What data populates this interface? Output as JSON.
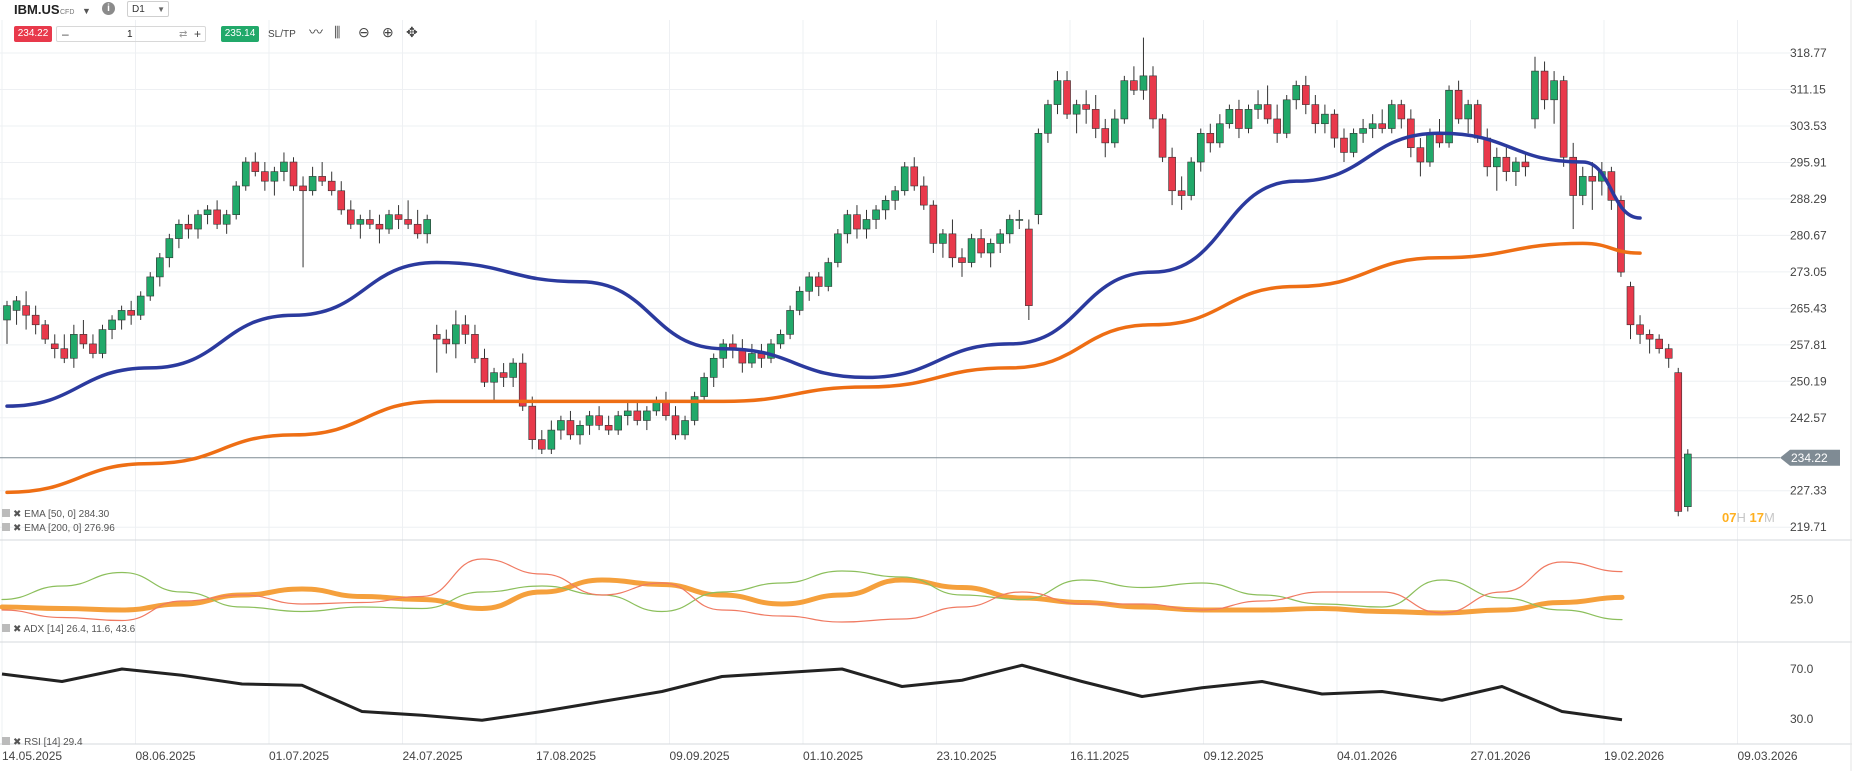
{
  "header": {
    "symbol": "IBM.US",
    "instrument_type": "CFD",
    "timeframe": "D1",
    "sell_price": "234.22",
    "buy_price": "235.14",
    "quantity": "1",
    "sltp_label": "SL/TP",
    "minus_label": "–",
    "plus_label": "+",
    "info_label": "i"
  },
  "countdown": {
    "hours": "07",
    "hours_unit": "H",
    "minutes": "17",
    "minutes_unit": "M"
  },
  "colors": {
    "up": "#21a96a",
    "down": "#e8394b",
    "ema50": "#2b3a9e",
    "ema200": "#ee6e14",
    "adx": "#f5a03c",
    "plus_di": "#8cbf5c",
    "minus_di": "#f07a62",
    "rsi": "#222222",
    "price_badge": "#7f8b94"
  },
  "chart_data": [
    {
      "type": "candlestick",
      "title": "IBM.US",
      "y_ticks": [
        "318.77",
        "311.15",
        "303.53",
        "295.91",
        "288.29",
        "280.67",
        "273.05",
        "265.43",
        "257.81",
        "250.19",
        "242.57",
        "234.22",
        "227.33",
        "219.71"
      ],
      "current_price": "234.22",
      "x_ticks": [
        "14.05.2025",
        "08.06.2025",
        "01.07.2025",
        "24.07.2025",
        "17.08.2025",
        "09.09.2025",
        "01.10.2025",
        "23.10.2025",
        "16.11.2025",
        "09.12.2025",
        "04.01.2026",
        "27.01.2026",
        "19.02.2026",
        "09.03.2026"
      ],
      "ylim": [
        218.5,
        324
      ],
      "candles_ohlc": [
        [
          263,
          267,
          258,
          266
        ],
        [
          265,
          268,
          262,
          267
        ],
        [
          266,
          269,
          261,
          264
        ],
        [
          264,
          266,
          260,
          262
        ],
        [
          262,
          263,
          258,
          259
        ],
        [
          258,
          260,
          255,
          257
        ],
        [
          257,
          260,
          254,
          255
        ],
        [
          255,
          262,
          253,
          260
        ],
        [
          260,
          263,
          257,
          258
        ],
        [
          258,
          260,
          255,
          256
        ],
        [
          256,
          262,
          255,
          261
        ],
        [
          261,
          264,
          259,
          263
        ],
        [
          263,
          266,
          261,
          265
        ],
        [
          265,
          267,
          262,
          264
        ],
        [
          264,
          269,
          263,
          268
        ],
        [
          268,
          273,
          267,
          272
        ],
        [
          272,
          277,
          270,
          276
        ],
        [
          276,
          281,
          274,
          280
        ],
        [
          280,
          284,
          278,
          283
        ],
        [
          283,
          285,
          280,
          282
        ],
        [
          282,
          286,
          280,
          285
        ],
        [
          285,
          287,
          283,
          286
        ],
        [
          286,
          288,
          282,
          283
        ],
        [
          283,
          286,
          281,
          285
        ],
        [
          285,
          292,
          284,
          291
        ],
        [
          291,
          297,
          290,
          296
        ],
        [
          296,
          298,
          293,
          294
        ],
        [
          294,
          296,
          290,
          292
        ],
        [
          292,
          295,
          289,
          294
        ],
        [
          294,
          298,
          292,
          296
        ],
        [
          296,
          297,
          290,
          291
        ],
        [
          291,
          293,
          274,
          290
        ],
        [
          290,
          295,
          289,
          293
        ],
        [
          293,
          296,
          291,
          292
        ],
        [
          292,
          294,
          289,
          290
        ],
        [
          290,
          292,
          285,
          286
        ],
        [
          286,
          288,
          282,
          283
        ],
        [
          283,
          285,
          280,
          284
        ],
        [
          284,
          286,
          282,
          283
        ],
        [
          283,
          285,
          279,
          282
        ],
        [
          282,
          286,
          281,
          285
        ],
        [
          285,
          287,
          282,
          284
        ],
        [
          284,
          288,
          282,
          283
        ],
        [
          283,
          286,
          280,
          281
        ],
        [
          281,
          285,
          279,
          284
        ],
        [
          260,
          262,
          252,
          259
        ],
        [
          259,
          261,
          256,
          258
        ],
        [
          258,
          265,
          255,
          262
        ],
        [
          262,
          264,
          258,
          260
        ],
        [
          260,
          262,
          254,
          255
        ],
        [
          255,
          257,
          249,
          250
        ],
        [
          250,
          253,
          246,
          252
        ],
        [
          252,
          254,
          249,
          251
        ],
        [
          251,
          255,
          249,
          254
        ],
        [
          254,
          256,
          244,
          245
        ],
        [
          245,
          247,
          236,
          238
        ],
        [
          238,
          240,
          235,
          236
        ],
        [
          236,
          242,
          235,
          240
        ],
        [
          240,
          243,
          238,
          242
        ],
        [
          242,
          244,
          238,
          239
        ],
        [
          239,
          242,
          237,
          241
        ],
        [
          241,
          244,
          239,
          243
        ],
        [
          243,
          245,
          240,
          241
        ],
        [
          241,
          243,
          239,
          240
        ],
        [
          240,
          244,
          239,
          243
        ],
        [
          243,
          246,
          241,
          244
        ],
        [
          244,
          246,
          241,
          242
        ],
        [
          242,
          245,
          240,
          244
        ],
        [
          244,
          247,
          243,
          246
        ],
        [
          246,
          248,
          242,
          243
        ],
        [
          243,
          245,
          238,
          239
        ],
        [
          239,
          243,
          238,
          242
        ],
        [
          242,
          248,
          241,
          247
        ],
        [
          247,
          252,
          246,
          251
        ],
        [
          251,
          256,
          249,
          255
        ],
        [
          255,
          259,
          253,
          258
        ],
        [
          258,
          260,
          255,
          257
        ],
        [
          257,
          259,
          252,
          254
        ],
        [
          254,
          258,
          253,
          256
        ],
        [
          256,
          258,
          253,
          255
        ],
        [
          255,
          259,
          254,
          258
        ],
        [
          258,
          261,
          257,
          260
        ],
        [
          260,
          266,
          259,
          265
        ],
        [
          265,
          270,
          264,
          269
        ],
        [
          269,
          273,
          267,
          272
        ],
        [
          272,
          273,
          268,
          270
        ],
        [
          270,
          276,
          269,
          275
        ],
        [
          275,
          282,
          274,
          281
        ],
        [
          281,
          286,
          279,
          285
        ],
        [
          285,
          287,
          280,
          282
        ],
        [
          282,
          286,
          280,
          284
        ],
        [
          284,
          287,
          282,
          286
        ],
        [
          286,
          289,
          284,
          288
        ],
        [
          288,
          291,
          286,
          290
        ],
        [
          290,
          296,
          289,
          295
        ],
        [
          295,
          297,
          290,
          291
        ],
        [
          291,
          293,
          286,
          287
        ],
        [
          287,
          288,
          277,
          279
        ],
        [
          279,
          282,
          276,
          281
        ],
        [
          281,
          284,
          274,
          276
        ],
        [
          276,
          278,
          272,
          275
        ],
        [
          275,
          281,
          274,
          280
        ],
        [
          280,
          282,
          276,
          277
        ],
        [
          277,
          280,
          274,
          279
        ],
        [
          279,
          282,
          277,
          281
        ],
        [
          281,
          285,
          279,
          284
        ],
        [
          284,
          286,
          282,
          284
        ],
        [
          282,
          284,
          263,
          266
        ],
        [
          285,
          303,
          283,
          302
        ],
        [
          302,
          309,
          300,
          308
        ],
        [
          308,
          315,
          306,
          313
        ],
        [
          313,
          315,
          305,
          306
        ],
        [
          306,
          309,
          302,
          308
        ],
        [
          308,
          311,
          304,
          307
        ],
        [
          307,
          310,
          301,
          303
        ],
        [
          303,
          305,
          297,
          300
        ],
        [
          300,
          307,
          299,
          305
        ],
        [
          305,
          314,
          304,
          313
        ],
        [
          313,
          316,
          310,
          311
        ],
        [
          311,
          322,
          309,
          314
        ],
        [
          314,
          316,
          303,
          305
        ],
        [
          305,
          306,
          296,
          297
        ],
        [
          297,
          299,
          287,
          290
        ],
        [
          290,
          293,
          286,
          289
        ],
        [
          289,
          297,
          288,
          296
        ],
        [
          296,
          303,
          294,
          302
        ],
        [
          302,
          304,
          298,
          300
        ],
        [
          300,
          306,
          299,
          304
        ],
        [
          304,
          308,
          303,
          307
        ],
        [
          307,
          309,
          301,
          303
        ],
        [
          303,
          308,
          302,
          307
        ],
        [
          307,
          311,
          305,
          308
        ],
        [
          308,
          312,
          304,
          305
        ],
        [
          305,
          308,
          300,
          302
        ],
        [
          302,
          310,
          301,
          309
        ],
        [
          309,
          313,
          307,
          312
        ],
        [
          312,
          314,
          306,
          308
        ],
        [
          308,
          310,
          302,
          304
        ],
        [
          304,
          308,
          302,
          306
        ],
        [
          306,
          307,
          299,
          301
        ],
        [
          301,
          303,
          296,
          298
        ],
        [
          298,
          303,
          297,
          302
        ],
        [
          302,
          305,
          300,
          303
        ],
        [
          303,
          306,
          301,
          304
        ],
        [
          304,
          307,
          302,
          303
        ],
        [
          303,
          309,
          302,
          308
        ],
        [
          308,
          309,
          303,
          305
        ],
        [
          305,
          307,
          297,
          299
        ],
        [
          299,
          301,
          293,
          296
        ],
        [
          296,
          303,
          295,
          302
        ],
        [
          302,
          305,
          299,
          300
        ],
        [
          300,
          312,
          299,
          311
        ],
        [
          311,
          313,
          304,
          305
        ],
        [
          305,
          309,
          302,
          308
        ],
        [
          308,
          309,
          300,
          301
        ],
        [
          301,
          303,
          293,
          295
        ],
        [
          295,
          299,
          290,
          297
        ],
        [
          297,
          299,
          292,
          294
        ],
        [
          294,
          297,
          291,
          296
        ],
        [
          296,
          298,
          293,
          295
        ],
        [
          305,
          318,
          303,
          315
        ],
        [
          315,
          317,
          307,
          309
        ],
        [
          309,
          315,
          304,
          313
        ],
        [
          313,
          314,
          295,
          297
        ],
        [
          297,
          300,
          282,
          289
        ],
        [
          289,
          295,
          287,
          293
        ],
        [
          293,
          296,
          286,
          292
        ],
        [
          292,
          296,
          289,
          294
        ],
        [
          294,
          295,
          286,
          288
        ],
        [
          288,
          289,
          272,
          273
        ],
        [
          270,
          271,
          259,
          262
        ],
        [
          262,
          264,
          258,
          260
        ],
        [
          260,
          261,
          256,
          259
        ],
        [
          259,
          260,
          256,
          257
        ],
        [
          257,
          258,
          253,
          255
        ],
        [
          252,
          253,
          222,
          223
        ],
        [
          224,
          236,
          223,
          235
        ]
      ],
      "series": [
        {
          "name": "EMA [50, 0] 284.30",
          "x": [
            0,
            15,
            30,
            45,
            60,
            75,
            90,
            105,
            120,
            135,
            150,
            165,
            171
          ],
          "values": [
            245,
            253,
            264,
            275,
            271,
            257,
            251,
            258,
            273,
            292,
            302,
            296,
            284.3
          ]
        },
        {
          "name": "EMA [200, 0] 276.96",
          "x": [
            0,
            15,
            30,
            45,
            60,
            75,
            90,
            105,
            120,
            135,
            150,
            165,
            171
          ],
          "values": [
            227,
            233,
            239,
            246,
            246,
            246,
            249,
            253,
            262,
            270,
            276,
            279,
            276.96
          ]
        }
      ]
    },
    {
      "type": "line",
      "title": "ADX [14] 26.4, 11.6, 43.6",
      "y_ticks": [
        "25.0"
      ],
      "ylim": [
        0,
        60
      ],
      "series": [
        {
          "name": "ADX",
          "values": [
            20,
            19,
            18,
            22,
            28,
            32,
            27,
            25,
            19,
            30,
            38,
            35,
            28,
            22,
            28,
            38,
            33,
            26,
            23,
            20,
            18,
            18,
            19,
            17,
            16,
            18,
            23,
            26.4
          ]
        },
        {
          "name": "+DI",
          "values": [
            25,
            34,
            43,
            30,
            20,
            17,
            20,
            19,
            30,
            34,
            28,
            17,
            30,
            36,
            44,
            40,
            28,
            25,
            38,
            33,
            36,
            28,
            22,
            20,
            38,
            26,
            18,
            11.6
          ]
        },
        {
          "name": "-DI",
          "values": [
            18,
            13,
            11,
            24,
            28,
            22,
            23,
            27,
            52,
            42,
            28,
            36,
            18,
            14,
            10,
            12,
            20,
            30,
            22,
            22,
            18,
            24,
            30,
            30,
            16,
            30,
            50,
            43.6
          ]
        }
      ]
    },
    {
      "type": "line",
      "title": "RSI [14] 29.4",
      "y_ticks": [
        "70.0",
        "30.0"
      ],
      "ylim": [
        10,
        90
      ],
      "series": [
        {
          "name": "RSI",
          "values": [
            66,
            60,
            70,
            65,
            58,
            57,
            36,
            33,
            29,
            36,
            44,
            52,
            64,
            67,
            70,
            56,
            61,
            73,
            60,
            48,
            55,
            60,
            50,
            52,
            45,
            56,
            36,
            29.4
          ]
        }
      ]
    }
  ]
}
